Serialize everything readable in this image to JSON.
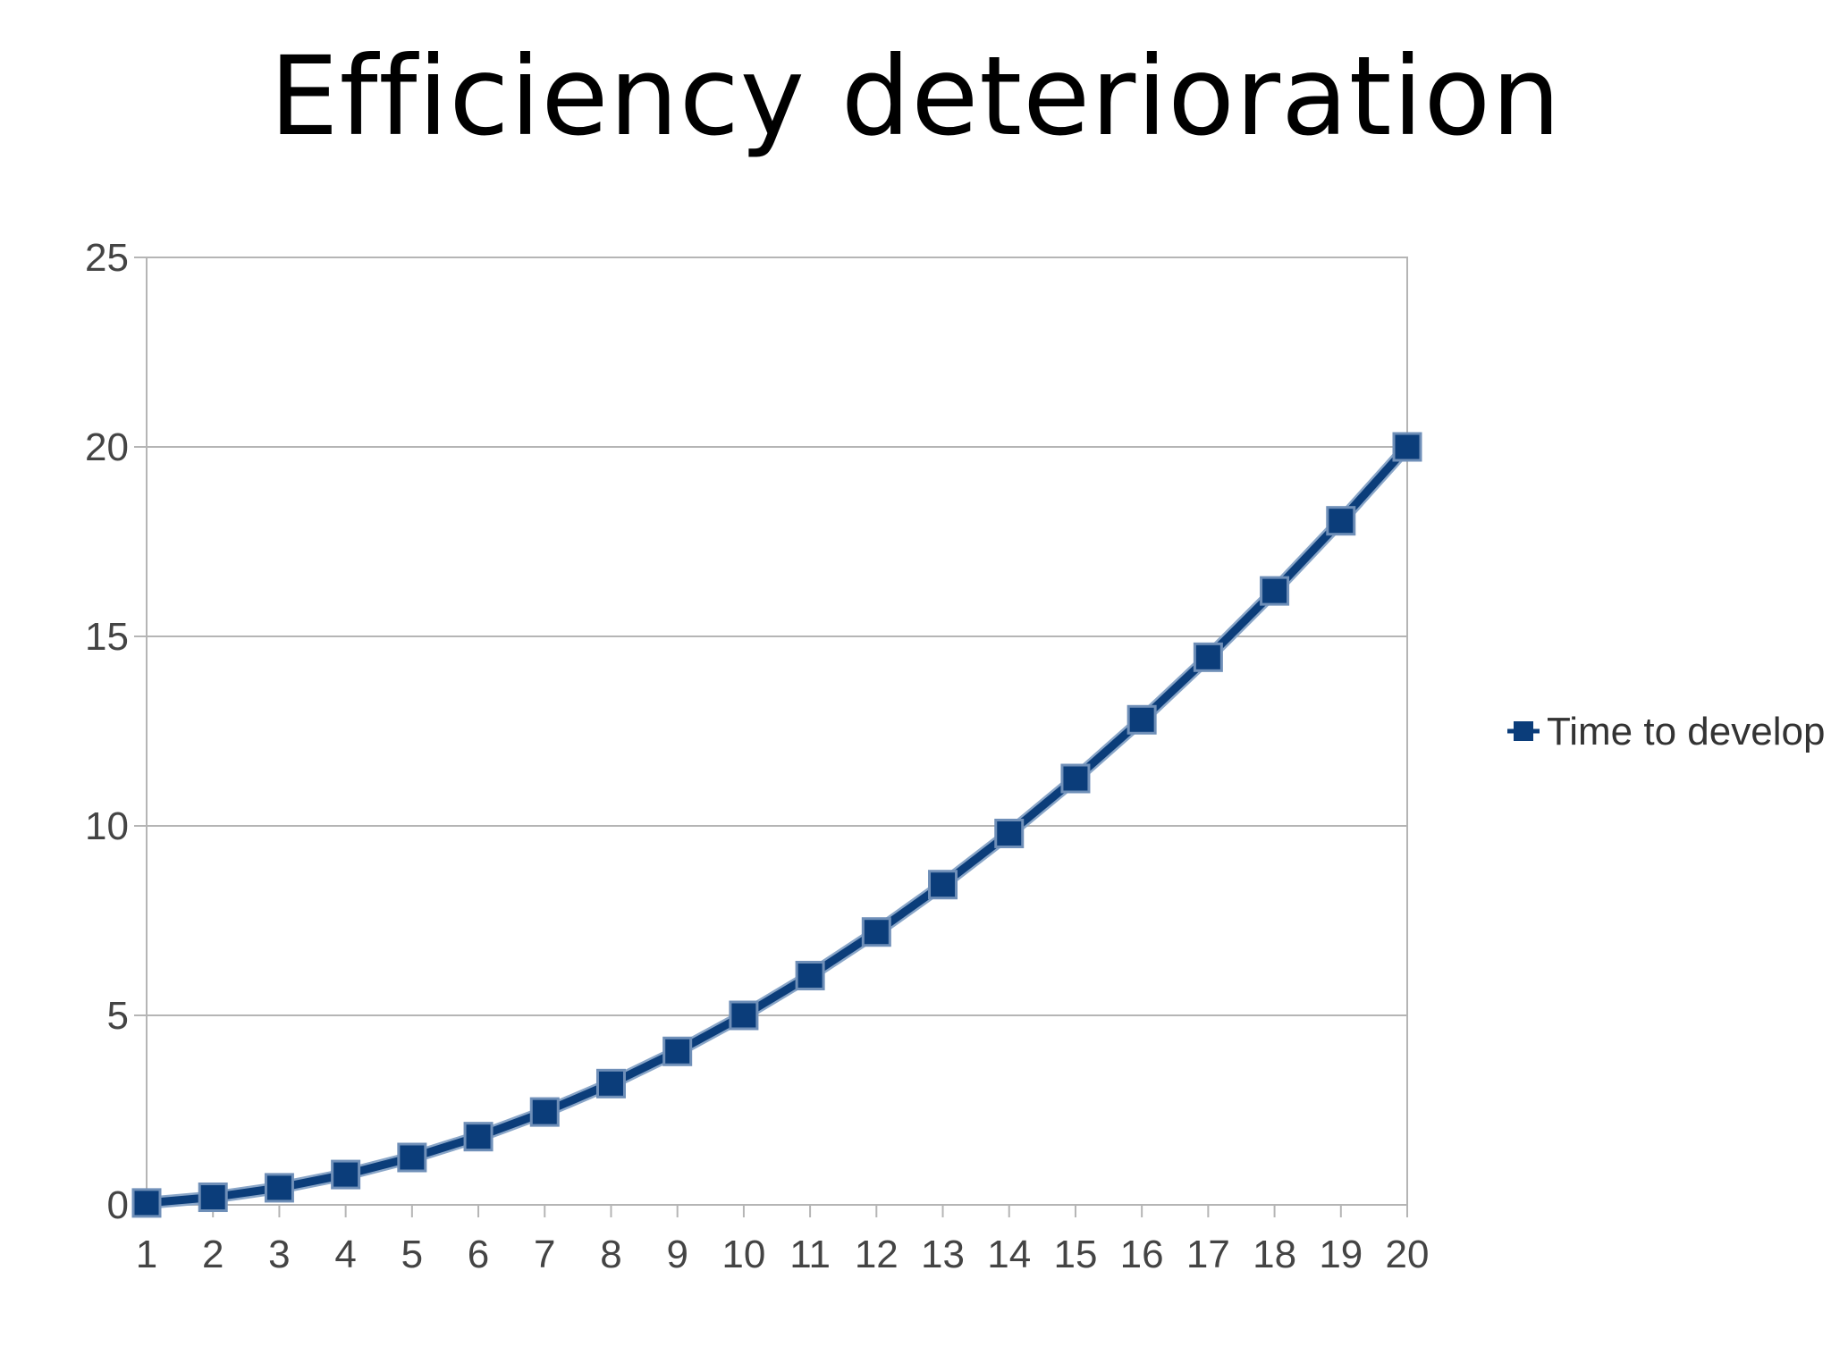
{
  "slide": {
    "title": "Efficiency deterioration"
  },
  "chart_data": {
    "type": "line",
    "title": "Efficiency deterioration",
    "xlabel": "",
    "ylabel": "",
    "categories": [
      "1",
      "2",
      "3",
      "4",
      "5",
      "6",
      "7",
      "8",
      "9",
      "10",
      "11",
      "12",
      "13",
      "14",
      "15",
      "16",
      "17",
      "18",
      "19",
      "20"
    ],
    "series": [
      {
        "name": "Time to develop",
        "color": "#0b3d7a",
        "marker": "square",
        "values": [
          0.05,
          0.2,
          0.45,
          0.8,
          1.25,
          1.8,
          2.45,
          3.2,
          4.05,
          5.0,
          6.05,
          7.2,
          8.45,
          9.8,
          11.25,
          12.8,
          14.45,
          16.2,
          18.05,
          20.0
        ]
      }
    ],
    "ylim": [
      0,
      25
    ],
    "yticks": [
      "0",
      "5",
      "10",
      "15",
      "20",
      "25"
    ],
    "grid": "horizontal",
    "legend": "right"
  }
}
